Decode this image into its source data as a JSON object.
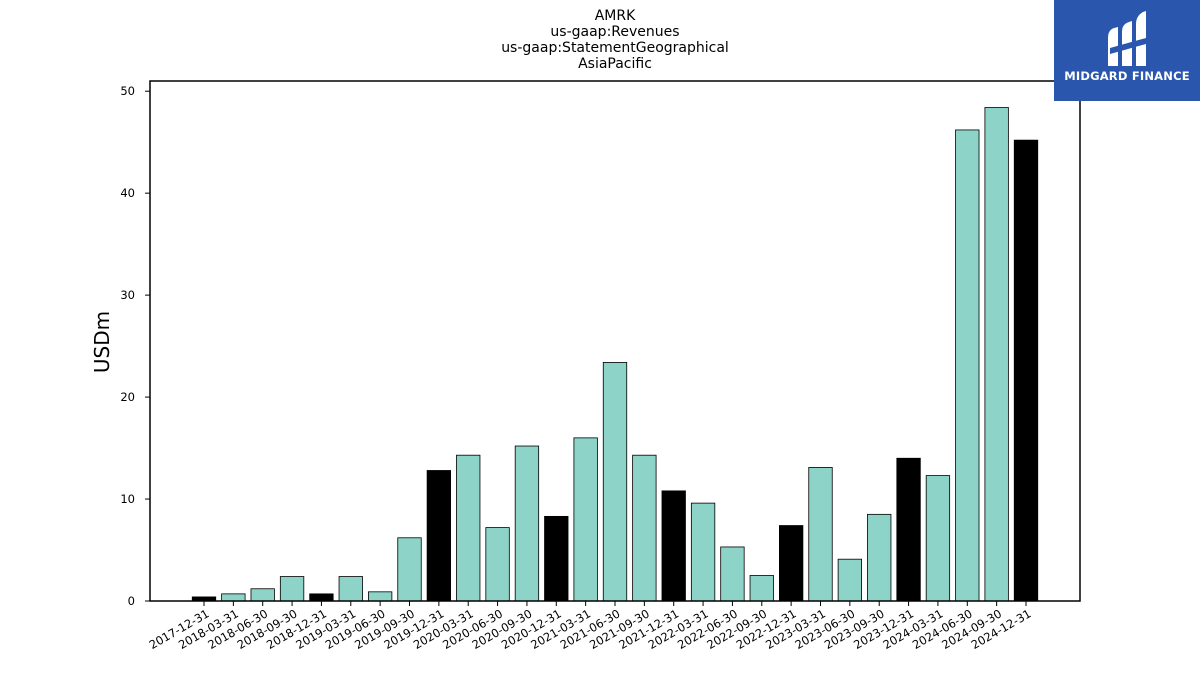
{
  "chart_data": {
    "type": "bar",
    "title_lines": [
      "AMRK",
      "us-gaap:Revenues",
      "us-gaap:StatementGeographical",
      "AsiaPacific"
    ],
    "xlabel": "",
    "ylabel": "USDm",
    "ylim": [
      0,
      51
    ],
    "yticks": [
      0,
      10,
      20,
      30,
      40,
      50
    ],
    "grid": false,
    "categories": [
      "2017-12-31",
      "2018-03-31",
      "2018-06-30",
      "2018-09-30",
      "2018-12-31",
      "2019-03-31",
      "2019-06-30",
      "2019-09-30",
      "2019-12-31",
      "2020-03-31",
      "2020-06-30",
      "2020-09-30",
      "2020-12-31",
      "2021-03-31",
      "2021-06-30",
      "2021-09-30",
      "2021-12-31",
      "2022-03-31",
      "2022-06-30",
      "2022-09-30",
      "2022-12-31",
      "2023-03-31",
      "2023-06-30",
      "2023-09-30",
      "2023-12-31",
      "2024-03-31",
      "2024-06-30",
      "2024-09-30",
      "2024-12-31"
    ],
    "values": [
      0.4,
      0.7,
      1.2,
      2.4,
      0.7,
      2.4,
      0.9,
      6.2,
      12.8,
      14.3,
      7.2,
      15.2,
      8.3,
      16.0,
      23.4,
      14.3,
      10.8,
      9.6,
      5.3,
      2.5,
      7.4,
      13.1,
      4.1,
      8.5,
      14.0,
      12.3,
      46.2,
      48.4,
      45.2
    ],
    "bar_colors": [
      "#000000",
      "#8dd3c7",
      "#8dd3c7",
      "#8dd3c7",
      "#000000",
      "#8dd3c7",
      "#8dd3c7",
      "#8dd3c7",
      "#000000",
      "#8dd3c7",
      "#8dd3c7",
      "#8dd3c7",
      "#000000",
      "#8dd3c7",
      "#8dd3c7",
      "#8dd3c7",
      "#000000",
      "#8dd3c7",
      "#8dd3c7",
      "#8dd3c7",
      "#000000",
      "#8dd3c7",
      "#8dd3c7",
      "#8dd3c7",
      "#000000",
      "#8dd3c7",
      "#8dd3c7",
      "#8dd3c7",
      "#000000"
    ]
  },
  "logo": {
    "text": "MIDGARD FINANCE",
    "background": "#2a56ad"
  }
}
